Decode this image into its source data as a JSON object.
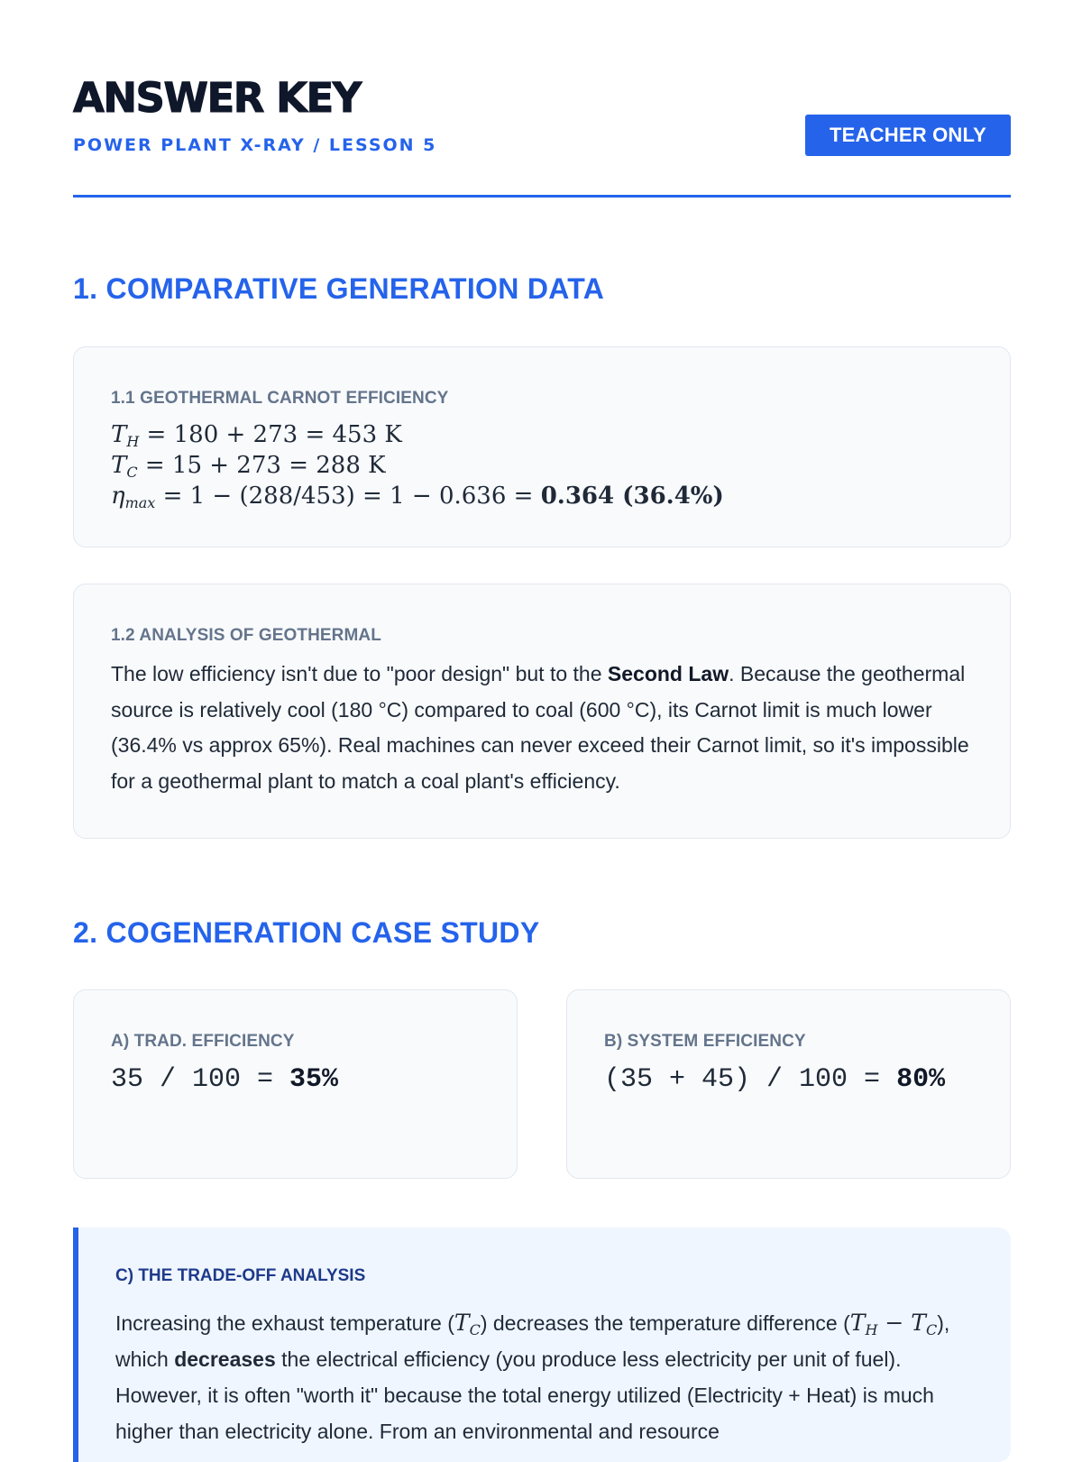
{
  "header": {
    "title": "ANSWER KEY",
    "subtitle": "POWER PLANT X-RAY / LESSON 5",
    "badge": "TEACHER ONLY"
  },
  "section1": {
    "heading": "1. COMPARATIVE GENERATION DATA",
    "card_1_1": {
      "label": "1.1 GEOTHERMAL CARNOT EFFICIENCY",
      "eq1_rhs": " = 180 + 273 = 453 K",
      "eq2_rhs": " = 15 + 273 = 288 K",
      "eq3_rhs": " = 1 − (288/453) = 1 − 0.636 = ",
      "eq3_result": "0.364 (36.4%)"
    },
    "card_1_2": {
      "label": "1.2 ANALYSIS OF GEOTHERMAL",
      "text_a": "The low efficiency isn't due to \"poor design\" but to the ",
      "text_bold": "Second Law",
      "text_b": ". Because the geothermal source is relatively cool (180 °C) compared to coal (600 °C), its Carnot limit is much lower (36.4% vs approx 65%). Real machines can never exceed their Carnot limit, so it's impossible for a geothermal plant to match a coal plant's efficiency."
    }
  },
  "section2": {
    "heading": "2. COGENERATION CASE STUDY",
    "card_a": {
      "label": "A) TRAD. EFFICIENCY",
      "expr": "35 / 100 = ",
      "result": "35%"
    },
    "card_b": {
      "label": "B) SYSTEM EFFICIENCY",
      "expr": "(35 + 45) / 100 = ",
      "result": "80%"
    },
    "callout": {
      "label": "C) THE TRADE-OFF ANALYSIS",
      "text_1": "Increasing the exhaust temperature (",
      "text_2": ") decreases the temperature difference (",
      "text_3": "), which ",
      "text_bold": "decreases",
      "text_4": " the electrical efficiency (you produce less electricity per unit of fuel). However, it is often \"worth it\" because the total energy utilized (Electricity + Heat) is much higher than electricity alone. From an environmental and resource"
    }
  }
}
